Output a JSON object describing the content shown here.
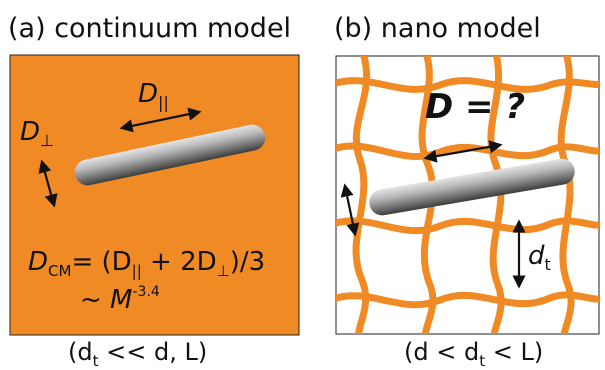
{
  "panel_a": {
    "title": "(a) continuum model",
    "d_parallel": [
      "D",
      "||"
    ],
    "d_perp": [
      "D",
      "⊥"
    ],
    "formula": [
      "D",
      "CM",
      "= (D",
      "||",
      " + 2D",
      "⊥",
      ")/3"
    ],
    "scaling": [
      "~ M",
      "-3.4"
    ],
    "condition": [
      "(d",
      "t",
      " << d, L)"
    ]
  },
  "panel_b": {
    "title": "(b) nano model",
    "question": "D = ?",
    "mesh_size": [
      "d",
      "t"
    ],
    "condition": [
      "(d < d",
      "t",
      " < L)"
    ]
  }
}
